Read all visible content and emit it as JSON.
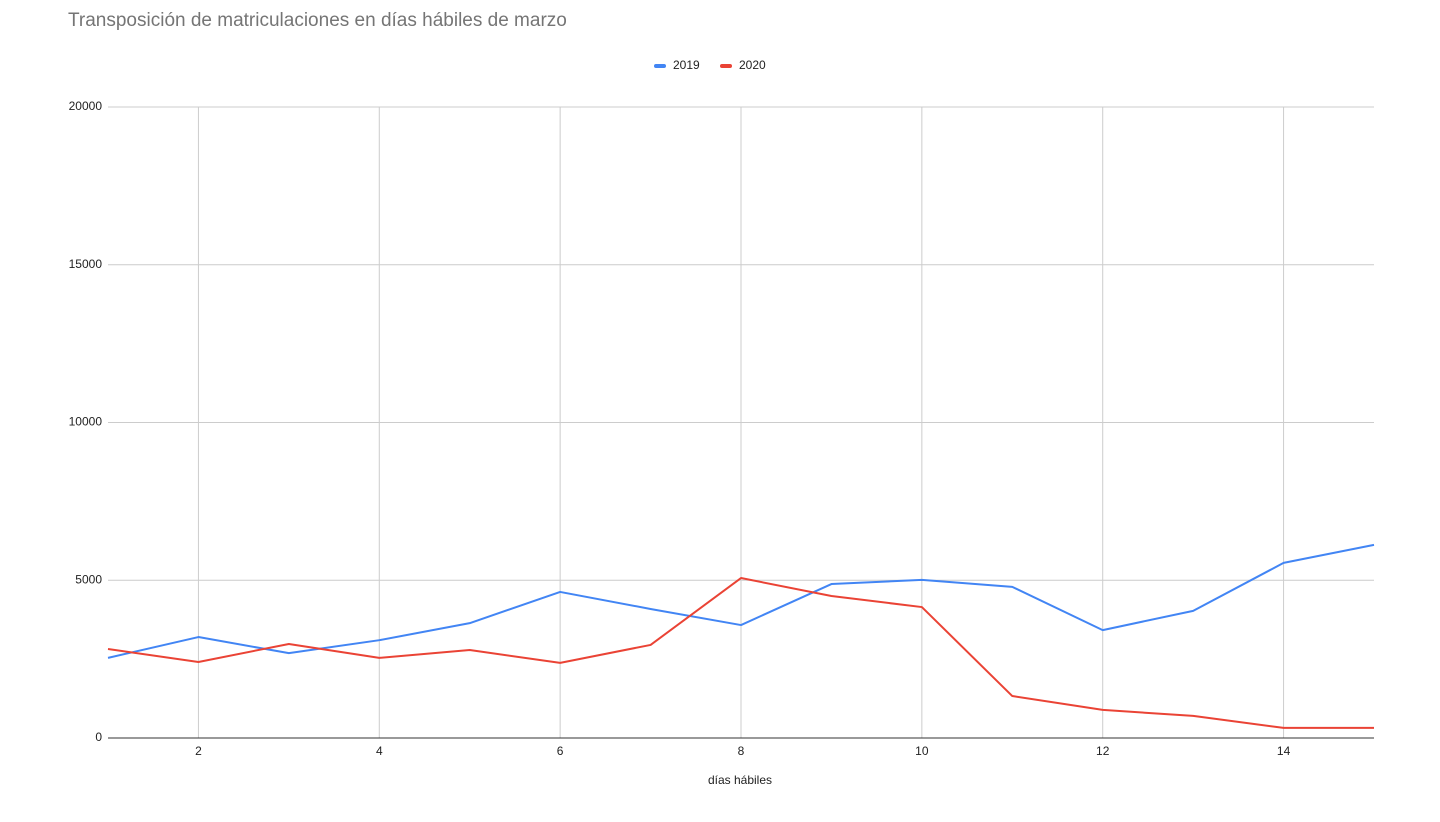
{
  "chart_data": {
    "type": "line",
    "title": "Transposición de matriculaciones en días hábiles de marzo",
    "x_label": "días hábiles",
    "x": [
      1,
      2,
      3,
      4,
      5,
      6,
      7,
      8,
      9,
      10,
      11,
      12,
      13,
      14,
      15
    ],
    "series": [
      {
        "name": "2019",
        "color": "#4285f4",
        "values": [
          2540,
          3200,
          2690,
          3100,
          3640,
          4630,
          4090,
          3580,
          4880,
          5010,
          4790,
          3420,
          4030,
          5550,
          6120
        ]
      },
      {
        "name": "2020",
        "color": "#ea4335",
        "values": [
          2820,
          2410,
          2980,
          2540,
          2790,
          2380,
          2950,
          5070,
          4500,
          4150,
          1330,
          890,
          700,
          320,
          320
        ]
      }
    ],
    "xlim": [
      1,
      15
    ],
    "xticks": [
      2,
      4,
      6,
      8,
      10,
      12,
      14
    ],
    "ylim": [
      0,
      20000
    ],
    "yticks": [
      0,
      5000,
      10000,
      15000,
      20000
    ],
    "grid": true,
    "legend": "top"
  }
}
